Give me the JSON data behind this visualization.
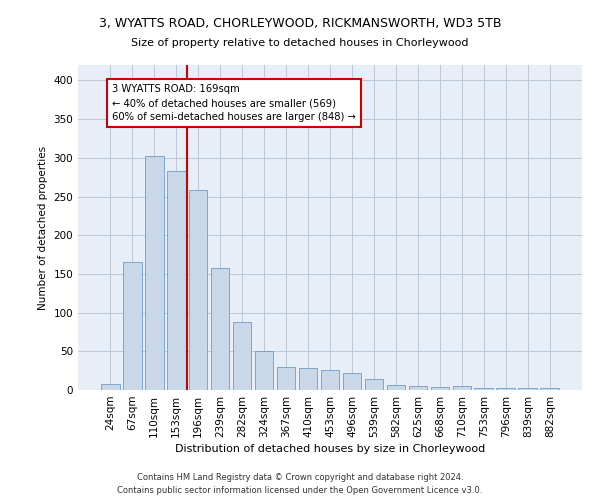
{
  "title1": "3, WYATTS ROAD, CHORLEYWOOD, RICKMANSWORTH, WD3 5TB",
  "title2": "Size of property relative to detached houses in Chorleywood",
  "xlabel": "Distribution of detached houses by size in Chorleywood",
  "ylabel": "Number of detached properties",
  "categories": [
    "24sqm",
    "67sqm",
    "110sqm",
    "153sqm",
    "196sqm",
    "239sqm",
    "282sqm",
    "324sqm",
    "367sqm",
    "410sqm",
    "453sqm",
    "496sqm",
    "539sqm",
    "582sqm",
    "625sqm",
    "668sqm",
    "710sqm",
    "753sqm",
    "796sqm",
    "839sqm",
    "882sqm"
  ],
  "values": [
    8,
    165,
    303,
    283,
    258,
    158,
    88,
    50,
    30,
    29,
    26,
    22,
    14,
    7,
    5,
    4,
    5,
    3,
    3,
    3,
    2
  ],
  "bar_color": "#c8d8e8",
  "bar_edge_color": "#5a8fc0",
  "bar_linewidth": 0.5,
  "grid_color": "#b8c8d8",
  "background_color": "#e8eef8",
  "red_line_x": 3.5,
  "red_line_color": "#cc0000",
  "annotation_text": "3 WYATTS ROAD: 169sqm\n← 40% of detached houses are smaller (569)\n60% of semi-detached houses are larger (848) →",
  "footer1": "Contains HM Land Registry data © Crown copyright and database right 2024.",
  "footer2": "Contains public sector information licensed under the Open Government Licence v3.0.",
  "ylim": [
    0,
    420
  ],
  "yticks": [
    0,
    50,
    100,
    150,
    200,
    250,
    300,
    350,
    400
  ]
}
